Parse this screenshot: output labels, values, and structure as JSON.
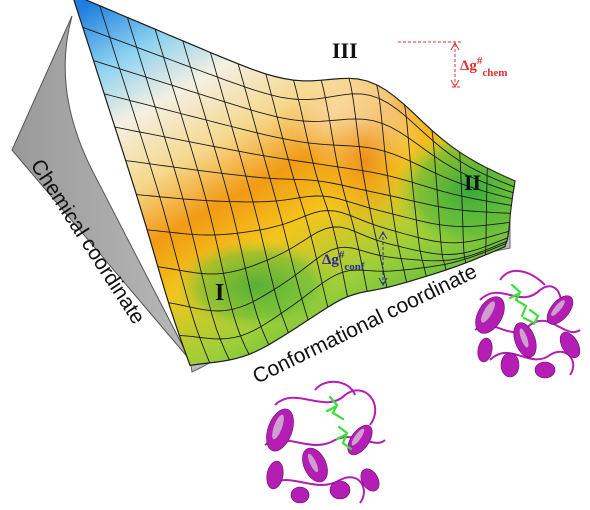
{
  "axes": {
    "chemical": "Chemical coordinate",
    "conformational": "Conformational coordinate"
  },
  "states": [
    {
      "id": "I",
      "label": "I"
    },
    {
      "id": "II",
      "label": "II"
    },
    {
      "id": "III",
      "label": "III"
    }
  ],
  "barriers": {
    "chem": {
      "symbol": "Δg",
      "sup": "#",
      "sub": "chem",
      "color": "#e03030"
    },
    "conf": {
      "symbol": "Δg",
      "sup": "#",
      "sub": "conf",
      "color": "#2a2a9a"
    }
  },
  "colors": {
    "surface_blue": "#1f7fe0",
    "surface_light": "#f4efe2",
    "surface_orange": "#f29a14",
    "surface_yellow": "#f3c51c",
    "surface_green": "#3cae3c",
    "protein_magenta": "#b41eb4",
    "ligand_green": "#38e038",
    "wall_gray": "#a6a6a6"
  },
  "proteins": [
    {
      "name": "protein-structure-upper-right"
    },
    {
      "name": "protein-structure-bottom"
    }
  ]
}
